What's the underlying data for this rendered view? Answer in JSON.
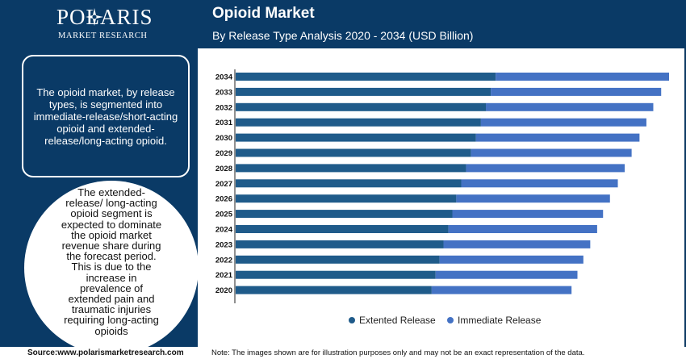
{
  "brand": {
    "name": "POLARIS",
    "tagline": "MARKET RESEARCH"
  },
  "header": {
    "title": "Opioid Market",
    "subtitle": "By Release Type Analysis 2020 - 2034 (USD Billion)"
  },
  "left_panel": {
    "description": "The opioid market, by release types, is segmented into immediate-release/short-acting opioid and extended-release/long-acting opioid.",
    "highlight": "The extended-release/ long-acting opioid segment is expected to dominate the opioid market revenue share during the forecast period. This is due to the increase in prevalence of extended pain and traumatic injuries requiring long-acting opioids"
  },
  "footer": {
    "source": "Source:www.polarismarketresearch.com",
    "note": "Note: The images shown are for illustration purposes only and may not be an exact representation of the data."
  },
  "colors": {
    "header_bg": "#0a3a66",
    "extended": "#1f5b8a",
    "immediate": "#4472c4"
  },
  "chart_data": {
    "type": "bar",
    "orientation": "horizontal",
    "stacked": true,
    "categories": [
      "2034",
      "2033",
      "2032",
      "2031",
      "2030",
      "2029",
      "2028",
      "2027",
      "2026",
      "2025",
      "2024",
      "2023",
      "2022",
      "2021",
      "2020"
    ],
    "series": [
      {
        "name": "Extented Release",
        "color": "#1f5b8a",
        "values": [
          13.2,
          12.95,
          12.7,
          12.45,
          12.2,
          11.95,
          11.7,
          11.45,
          11.2,
          11.0,
          10.8,
          10.55,
          10.35,
          10.15,
          9.95
        ]
      },
      {
        "name": "Immediate Release",
        "color": "#4472c4",
        "values": [
          8.8,
          8.65,
          8.5,
          8.4,
          8.3,
          8.15,
          8.05,
          7.95,
          7.8,
          7.65,
          7.55,
          7.45,
          7.3,
          7.2,
          7.1
        ]
      }
    ],
    "xlim": [
      0,
      22
    ],
    "legend": "bottom-center",
    "grid": false
  }
}
